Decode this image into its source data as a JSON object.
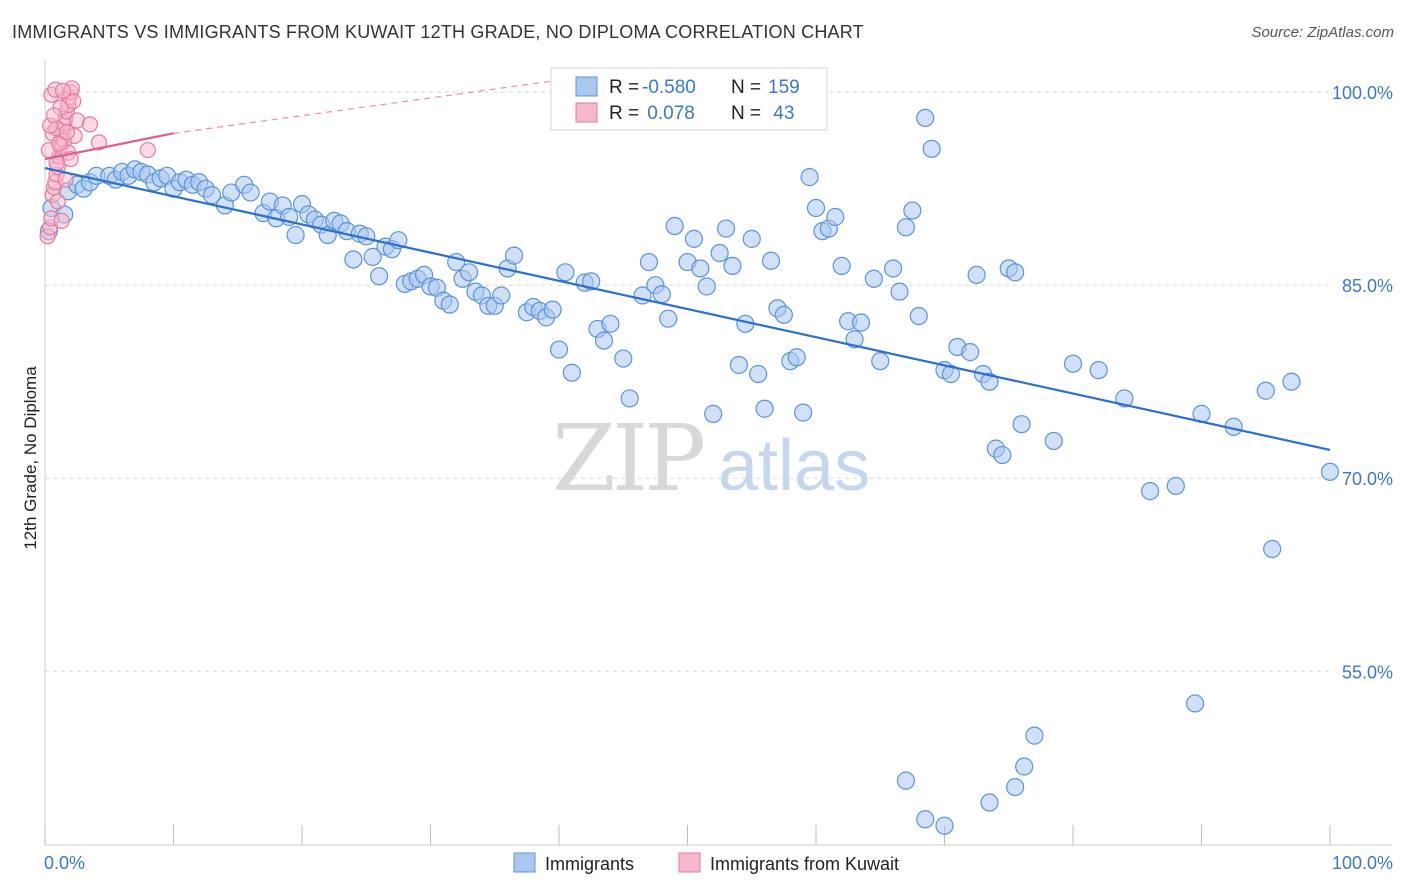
{
  "header": {
    "title": "IMMIGRANTS VS IMMIGRANTS FROM KUWAIT 12TH GRADE, NO DIPLOMA CORRELATION CHART",
    "source": "Source: ZipAtlas.com"
  },
  "watermark": {
    "zip": "ZIP",
    "atlas": "atlas"
  },
  "legend_box": {
    "rows": [
      {
        "r_label": "R =",
        "r_value": "-0.580",
        "n_label": "N =",
        "n_value": "159"
      },
      {
        "r_label": "R =",
        "r_value": " 0.078",
        "n_label": "N =",
        "n_value": " 43"
      }
    ]
  },
  "bottom_legend": [
    "Immigrants",
    "Immigrants from Kuwait"
  ],
  "colors": {
    "blue_fill": "#a9c8f0",
    "blue_stroke": "#5b93d9",
    "blue_line": "#2a6fd1",
    "pink_fill": "#f6b8cb",
    "pink_stroke": "#e8799d",
    "pink_line": "#e25b8a",
    "grid": "#d9d9d9",
    "axis_text": "#3b78c8"
  },
  "chart_data": {
    "type": "scatter",
    "title": "IMMIGRANTS VS IMMIGRANTS FROM KUWAIT 12TH GRADE, NO DIPLOMA CORRELATION CHART",
    "xlabel": "",
    "ylabel": "12th Grade, No Diploma",
    "x_tick_labels": [
      "0.0%",
      "100.0%"
    ],
    "y_tick_labels": [
      "100.0%",
      "85.0%",
      "70.0%",
      "55.0%"
    ],
    "y_ticks": [
      100,
      85,
      70,
      55
    ],
    "xlim": [
      0,
      100
    ],
    "ylim": [
      41.5,
      102.5
    ],
    "grid": true,
    "legend_position": "top-center",
    "series": [
      {
        "name": "Immigrants",
        "r": -0.58,
        "n": 159,
        "trend": {
          "x": [
            0,
            100
          ],
          "y": [
            94.1,
            72.2
          ]
        },
        "points": [
          [
            0.3,
            89.2
          ],
          [
            0.5,
            91.0
          ],
          [
            1.5,
            90.5
          ],
          [
            1.8,
            92.3
          ],
          [
            2.5,
            92.8
          ],
          [
            3.0,
            92.5
          ],
          [
            3.5,
            93.0
          ],
          [
            4.0,
            93.5
          ],
          [
            5.0,
            93.5
          ],
          [
            5.5,
            93.2
          ],
          [
            6.0,
            93.8
          ],
          [
            6.5,
            93.5
          ],
          [
            7.0,
            94.0
          ],
          [
            7.5,
            93.8
          ],
          [
            8.0,
            93.6
          ],
          [
            8.5,
            93.0
          ],
          [
            9.0,
            93.3
          ],
          [
            9.5,
            93.5
          ],
          [
            10.0,
            92.5
          ],
          [
            10.5,
            93.0
          ],
          [
            11.0,
            93.2
          ],
          [
            11.5,
            92.8
          ],
          [
            12.0,
            93.0
          ],
          [
            12.5,
            92.5
          ],
          [
            13.0,
            92.0
          ],
          [
            14.0,
            91.2
          ],
          [
            14.5,
            92.2
          ],
          [
            15.5,
            92.8
          ],
          [
            16.0,
            92.2
          ],
          [
            17.0,
            90.6
          ],
          [
            17.5,
            91.5
          ],
          [
            18.0,
            90.2
          ],
          [
            18.5,
            91.2
          ],
          [
            19.0,
            90.3
          ],
          [
            19.5,
            88.9
          ],
          [
            20.0,
            91.3
          ],
          [
            20.5,
            90.5
          ],
          [
            21.0,
            90.1
          ],
          [
            21.5,
            89.7
          ],
          [
            22.0,
            88.9
          ],
          [
            22.5,
            90.0
          ],
          [
            23.0,
            89.8
          ],
          [
            23.5,
            89.2
          ],
          [
            24.0,
            87.0
          ],
          [
            24.5,
            89.0
          ],
          [
            25.0,
            88.8
          ],
          [
            25.5,
            87.2
          ],
          [
            26.0,
            85.7
          ],
          [
            26.5,
            88.0
          ],
          [
            27.0,
            87.8
          ],
          [
            27.5,
            88.5
          ],
          [
            28.0,
            85.1
          ],
          [
            28.5,
            85.3
          ],
          [
            29.0,
            85.5
          ],
          [
            29.5,
            85.8
          ],
          [
            30.0,
            84.9
          ],
          [
            30.5,
            84.8
          ],
          [
            31.0,
            83.8
          ],
          [
            31.5,
            83.5
          ],
          [
            32.0,
            86.8
          ],
          [
            32.5,
            85.5
          ],
          [
            33.0,
            86.0
          ],
          [
            33.5,
            84.5
          ],
          [
            34.0,
            84.2
          ],
          [
            34.5,
            83.4
          ],
          [
            35.0,
            83.4
          ],
          [
            35.5,
            84.2
          ],
          [
            36.0,
            86.3
          ],
          [
            36.5,
            87.3
          ],
          [
            37.5,
            82.9
          ],
          [
            38.0,
            83.3
          ],
          [
            38.5,
            83.0
          ],
          [
            39.0,
            82.5
          ],
          [
            39.5,
            83.1
          ],
          [
            40.0,
            80.0
          ],
          [
            40.5,
            86.0
          ],
          [
            41.0,
            78.2
          ],
          [
            42.0,
            85.2
          ],
          [
            42.5,
            85.3
          ],
          [
            43.0,
            81.6
          ],
          [
            43.5,
            80.7
          ],
          [
            44.0,
            82.0
          ],
          [
            45.0,
            79.3
          ],
          [
            45.5,
            76.2
          ],
          [
            46.5,
            84.2
          ],
          [
            47.0,
            86.8
          ],
          [
            47.5,
            85.0
          ],
          [
            48.0,
            84.3
          ],
          [
            48.5,
            82.4
          ],
          [
            49.0,
            89.6
          ],
          [
            50.0,
            86.8
          ],
          [
            50.5,
            88.6
          ],
          [
            51.0,
            86.3
          ],
          [
            51.5,
            84.9
          ],
          [
            52.0,
            75.0
          ],
          [
            52.5,
            87.5
          ],
          [
            53.0,
            89.4
          ],
          [
            53.5,
            86.5
          ],
          [
            54.0,
            78.8
          ],
          [
            54.5,
            82.0
          ],
          [
            55.0,
            88.6
          ],
          [
            55.5,
            78.1
          ],
          [
            56.0,
            75.4
          ],
          [
            56.5,
            86.9
          ],
          [
            57.0,
            83.2
          ],
          [
            57.5,
            82.7
          ],
          [
            58.0,
            79.1
          ],
          [
            58.5,
            79.4
          ],
          [
            59.0,
            75.1
          ],
          [
            59.5,
            93.4
          ],
          [
            60.0,
            91.0
          ],
          [
            60.5,
            89.2
          ],
          [
            61.0,
            89.4
          ],
          [
            61.5,
            90.3
          ],
          [
            62.0,
            86.5
          ],
          [
            62.5,
            82.2
          ],
          [
            63.0,
            80.8
          ],
          [
            63.5,
            82.1
          ],
          [
            64.5,
            85.5
          ],
          [
            65.0,
            79.1
          ],
          [
            66.0,
            86.3
          ],
          [
            66.5,
            84.5
          ],
          [
            67.0,
            89.5
          ],
          [
            67.5,
            90.8
          ],
          [
            68.0,
            82.6
          ],
          [
            68.5,
            98.0
          ],
          [
            69.0,
            95.6
          ],
          [
            70.0,
            78.4
          ],
          [
            70.5,
            78.1
          ],
          [
            71.0,
            80.2
          ],
          [
            72.0,
            79.8
          ],
          [
            72.5,
            85.8
          ],
          [
            73.0,
            78.1
          ],
          [
            73.5,
            77.5
          ],
          [
            74.0,
            72.3
          ],
          [
            74.5,
            71.8
          ],
          [
            75.0,
            86.3
          ],
          [
            75.5,
            86.0
          ],
          [
            76.0,
            74.2
          ],
          [
            78.5,
            72.9
          ],
          [
            80.0,
            78.9
          ],
          [
            82.0,
            78.4
          ],
          [
            84.0,
            76.2
          ],
          [
            86.0,
            69.0
          ],
          [
            88.0,
            69.4
          ],
          [
            90.0,
            75.0
          ],
          [
            92.5,
            74.0
          ],
          [
            95.0,
            76.8
          ],
          [
            97.0,
            77.5
          ],
          [
            100.0,
            70.5
          ],
          [
            95.5,
            64.5
          ],
          [
            89.5,
            52.5
          ],
          [
            77.0,
            50.0
          ],
          [
            76.2,
            47.6
          ],
          [
            75.5,
            46.0
          ],
          [
            73.5,
            44.8
          ],
          [
            70.0,
            43.0
          ],
          [
            67.0,
            46.5
          ],
          [
            68.5,
            43.5
          ]
        ]
      },
      {
        "name": "Immigrants from Kuwait",
        "r": 0.078,
        "n": 43,
        "trend": {
          "x": [
            0,
            10
          ],
          "y": [
            94.8,
            96.8
          ]
        },
        "trend_extension": {
          "x": [
            10,
            40.5
          ],
          "y": [
            96.8,
            101.0
          ]
        },
        "points": [
          [
            0.2,
            88.8
          ],
          [
            0.4,
            89.5
          ],
          [
            0.5,
            90.2
          ],
          [
            0.6,
            92.0
          ],
          [
            0.7,
            92.6
          ],
          [
            0.8,
            93.0
          ],
          [
            0.9,
            93.6
          ],
          [
            1.0,
            94.2
          ],
          [
            1.1,
            95.0
          ],
          [
            1.2,
            95.8
          ],
          [
            1.3,
            96.4
          ],
          [
            1.4,
            97.0
          ],
          [
            1.5,
            97.6
          ],
          [
            1.6,
            98.0
          ],
          [
            1.7,
            98.5
          ],
          [
            1.8,
            99.0
          ],
          [
            1.9,
            99.6
          ],
          [
            2.0,
            100.0
          ],
          [
            2.1,
            100.3
          ],
          [
            2.2,
            99.3
          ],
          [
            0.3,
            95.5
          ],
          [
            0.6,
            96.8
          ],
          [
            0.9,
            97.2
          ],
          [
            1.2,
            98.8
          ],
          [
            1.5,
            96.2
          ],
          [
            1.8,
            95.3
          ],
          [
            2.0,
            94.8
          ],
          [
            2.3,
            96.6
          ],
          [
            2.5,
            97.8
          ],
          [
            0.5,
            99.8
          ],
          [
            0.8,
            100.2
          ],
          [
            1.0,
            91.5
          ],
          [
            1.3,
            90.0
          ],
          [
            1.6,
            93.2
          ],
          [
            0.4,
            97.4
          ],
          [
            0.7,
            98.2
          ],
          [
            1.1,
            96.0
          ],
          [
            3.5,
            97.5
          ],
          [
            4.2,
            96.1
          ],
          [
            8.0,
            95.5
          ],
          [
            1.4,
            100.1
          ],
          [
            0.9,
            94.5
          ],
          [
            1.7,
            96.9
          ]
        ]
      }
    ]
  }
}
